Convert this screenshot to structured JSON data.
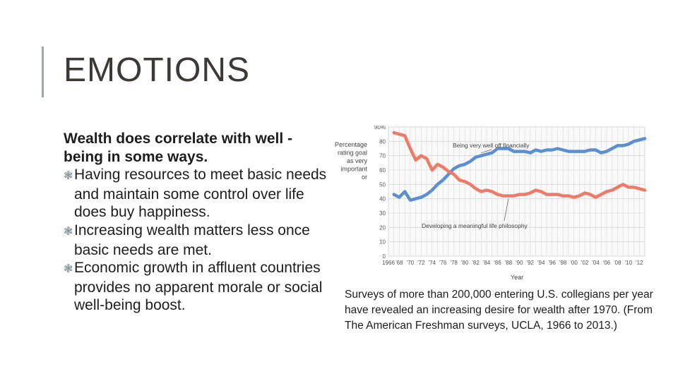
{
  "slide": {
    "title": "EMOTIONS",
    "lead": "Wealth does correlate with well -being in some ways.",
    "bullets": [
      "Having resources to meet basic needs and maintain some control over life does buy happiness.",
      "Increasing wealth matters less once basic needs are met.",
      "Economic growth in affluent countries provides no apparent morale or social well-being boost."
    ],
    "caption": "Surveys of more than 200,000 entering U.S. collegians per year have revealed an increasing desire for wealth after 1970. (From The American Freshman surveys, UCLA, 1966 to 2013.)",
    "bullet_icon": "asterisk-bullet-icon"
  },
  "colors": {
    "accent_bar": "#9aa9ae",
    "series_wealth": "#5b8fd1",
    "series_philosophy": "#ee7b67",
    "grid": "#d8d8d8"
  },
  "chart_data": {
    "type": "line",
    "ylabel": "Percentage rating goal as very important or essential",
    "xlabel": "Year",
    "ylim": [
      0,
      90
    ],
    "xlim": [
      1966,
      2013
    ],
    "yticks": [
      "0",
      "10",
      "20",
      "30",
      "40",
      "50",
      "60",
      "70",
      "80",
      "90%"
    ],
    "xticks": [
      "1966",
      "'68",
      "'70",
      "'72",
      "'74",
      "'76",
      "'78",
      "'80",
      "'82",
      "'84",
      "'86",
      "'88",
      "'90",
      "'92",
      "'94",
      "'96",
      "'98",
      "'00",
      "'02",
      "'04",
      "'06",
      "'08",
      "'10",
      "'12"
    ],
    "x": [
      1967,
      1968,
      1969,
      1970,
      1971,
      1972,
      1973,
      1974,
      1975,
      1976,
      1977,
      1978,
      1979,
      1980,
      1981,
      1982,
      1983,
      1984,
      1985,
      1986,
      1987,
      1988,
      1989,
      1990,
      1991,
      1992,
      1993,
      1994,
      1995,
      1996,
      1997,
      1998,
      1999,
      2000,
      2001,
      2002,
      2003,
      2004,
      2005,
      2006,
      2007,
      2008,
      2009,
      2010,
      2011,
      2012,
      2013
    ],
    "series": [
      {
        "name": "Being very well off financially",
        "values": [
          43,
          41,
          45,
          39,
          40,
          41,
          43,
          46,
          50,
          53,
          57,
          61,
          63,
          64,
          66,
          69,
          70,
          71,
          72,
          75,
          75,
          75,
          73,
          73,
          73,
          72,
          74,
          73,
          74,
          74,
          75,
          74,
          73,
          73,
          73,
          73,
          74,
          74,
          72,
          73,
          75,
          77,
          77,
          78,
          80,
          81,
          82
        ]
      },
      {
        "name": "Developing a meaningful life philosophy",
        "values": [
          86,
          85,
          84,
          75,
          67,
          70,
          68,
          60,
          64,
          62,
          59,
          57,
          53,
          52,
          50,
          47,
          45,
          46,
          45,
          43,
          42,
          42,
          42,
          43,
          43,
          44,
          46,
          45,
          43,
          43,
          43,
          42,
          42,
          41,
          42,
          44,
          43,
          41,
          43,
          45,
          46,
          48,
          50,
          48,
          48,
          47,
          46
        ]
      }
    ]
  }
}
